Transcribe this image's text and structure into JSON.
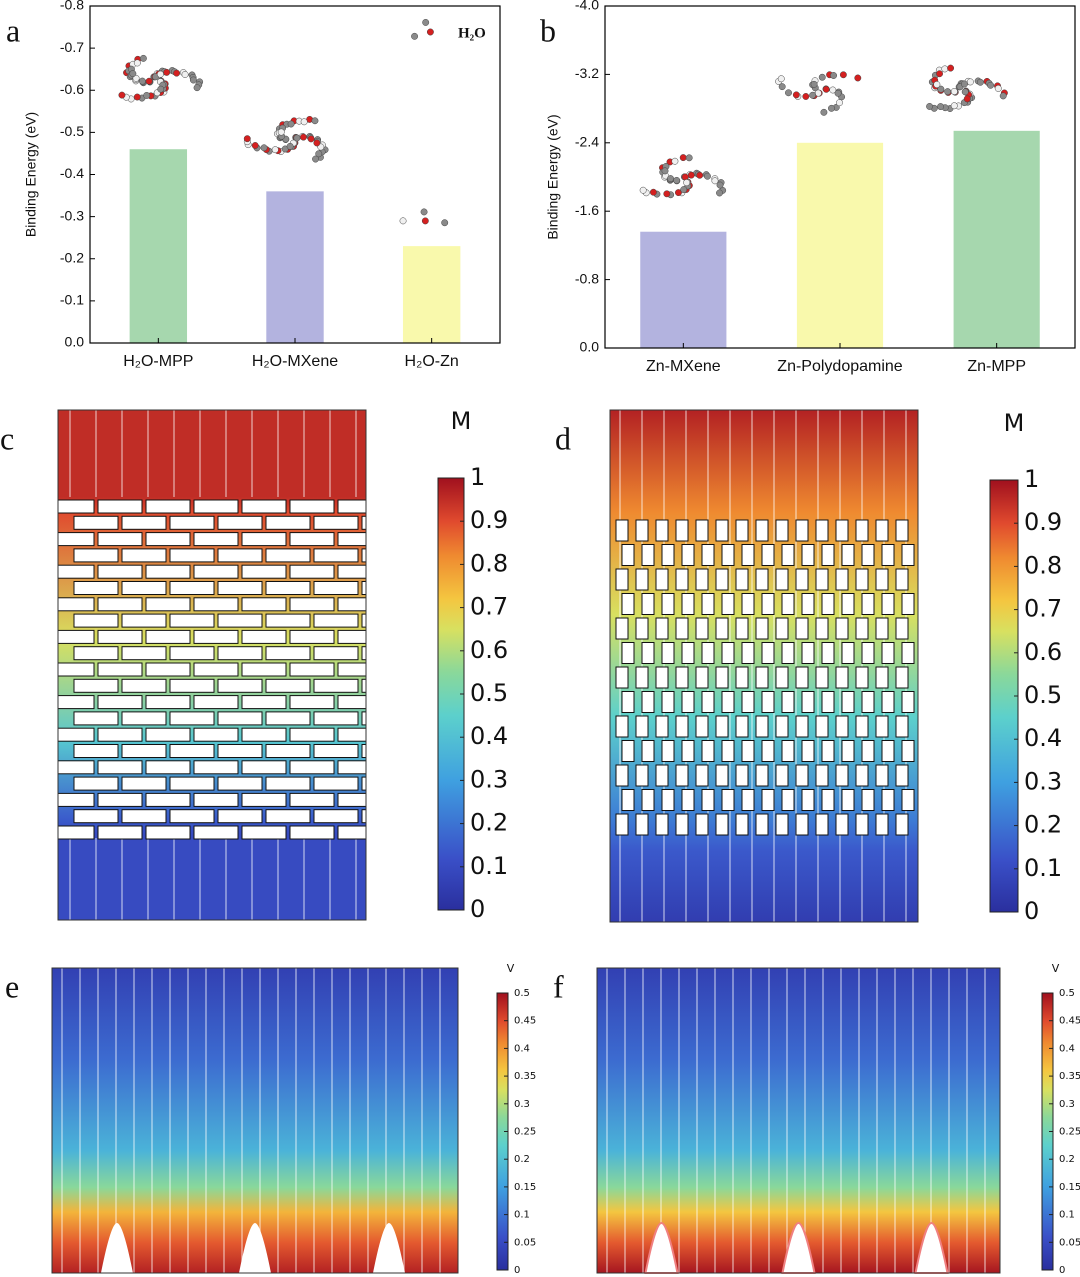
{
  "chart_data": [
    {
      "type": "bar",
      "panel": "a",
      "y_label": "Binding Energy (eV)",
      "annotation": "H₂O",
      "categories": [
        "H₂O-MPP",
        "H₂O-MXene",
        "H₂O-Zn"
      ],
      "values": [
        -0.46,
        -0.36,
        -0.23
      ],
      "colors": [
        "#a6d7ae",
        "#b3b3df",
        "#f9f9ac"
      ],
      "ylim": [
        0,
        -0.8
      ],
      "yticks": [
        {
          "value": 0,
          "label": "0.0"
        },
        -0.1,
        -0.2,
        -0.3,
        -0.4,
        -0.5,
        -0.6,
        -0.7,
        -0.8
      ],
      "grid": false
    },
    {
      "type": "bar",
      "panel": "b",
      "y_label": "Binding Energy (eV)",
      "categories": [
        "Zn-MXene",
        "Zn-Polydopamine",
        "Zn-MPP"
      ],
      "values": [
        -1.36,
        -2.4,
        -2.54
      ],
      "colors": [
        "#b3b3df",
        "#f9f9ac",
        "#a6d7ae"
      ],
      "ylim": [
        0,
        -4.0
      ],
      "yticks": [
        {
          "value": 0,
          "label": "0.0"
        },
        -0.8,
        -1.6,
        -2.4,
        -3.2,
        {
          "value": -4.0,
          "label": "-4.0"
        }
      ],
      "grid": false
    },
    {
      "type": "heatmap",
      "panel": "c",
      "colorbar": {
        "label": "M",
        "lim": [
          0,
          1
        ],
        "ticks": [
          0,
          0.1,
          0.2,
          0.3,
          0.4,
          0.5,
          0.6,
          0.7,
          0.8,
          0.9,
          1
        ]
      }
    },
    {
      "type": "heatmap",
      "panel": "d",
      "colorbar": {
        "label": "M",
        "lim": [
          0,
          1
        ],
        "ticks": [
          0,
          0.1,
          0.2,
          0.3,
          0.4,
          0.5,
          0.6,
          0.7,
          0.8,
          0.9,
          1
        ]
      }
    },
    {
      "type": "heatmap",
      "panel": "e",
      "colorbar": {
        "label": "V",
        "lim": [
          0,
          0.5
        ],
        "ticks": [
          0,
          0.05,
          0.1,
          0.15,
          0.2,
          0.25,
          0.3,
          0.35,
          0.4,
          0.45,
          0.5
        ]
      }
    },
    {
      "type": "heatmap",
      "panel": "f",
      "colorbar": {
        "label": "V",
        "lim": [
          0,
          0.5
        ],
        "ticks": [
          0,
          0.05,
          0.1,
          0.15,
          0.2,
          0.25,
          0.3,
          0.35,
          0.4,
          0.45,
          0.5
        ]
      }
    }
  ]
}
